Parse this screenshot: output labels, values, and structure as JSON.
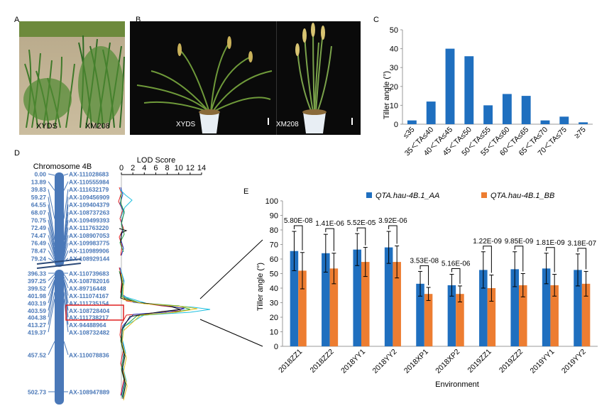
{
  "panels": {
    "a": "A",
    "b": "B",
    "c": "C",
    "d": "D",
    "e": "E"
  },
  "photo_a": {
    "left_label": "XYDS",
    "right_label": "XM208"
  },
  "photo_b": {
    "left_label": "XYDS",
    "right_label": "XM208"
  },
  "chromosome": {
    "title": "Chromosome 4B",
    "lod_title": "LOD Score",
    "lod_ticks": [
      "0",
      "2",
      "4",
      "6",
      "8",
      "10",
      "12",
      "14"
    ],
    "upper_markers": [
      {
        "pos": "0.00",
        "name": "AX-111028683"
      },
      {
        "pos": "13.89",
        "name": "AX-110555984"
      },
      {
        "pos": "39.83",
        "name": "AX-111632179"
      },
      {
        "pos": "59.27",
        "name": "AX-109456909"
      },
      {
        "pos": "64.55",
        "name": "AX-109404379"
      },
      {
        "pos": "68.07",
        "name": "AX-108737263"
      },
      {
        "pos": "70.75",
        "name": "AX-109499393"
      },
      {
        "pos": "72.49",
        "name": "AX-111763220"
      },
      {
        "pos": "74.47",
        "name": "AX-108907053"
      },
      {
        "pos": "76.49",
        "name": "AX-109983775"
      },
      {
        "pos": "78.47",
        "name": "AX-110989906"
      },
      {
        "pos": "79.24",
        "name": "AX-108929144"
      }
    ],
    "lower_markers": [
      {
        "pos": "396.33",
        "name": "AX-110739683"
      },
      {
        "pos": "397.25",
        "name": "AX-108782016"
      },
      {
        "pos": "399.52",
        "name": "AX-89716448"
      },
      {
        "pos": "401.98",
        "name": "AX-111074167"
      },
      {
        "pos": "403.19",
        "name": "AX-111735154"
      },
      {
        "pos": "403.59",
        "name": "AX-108728404"
      },
      {
        "pos": "404.38",
        "name": "AX-111738217"
      },
      {
        "pos": "413.27",
        "name": "AX-94488964"
      },
      {
        "pos": "419.37",
        "name": "AX-108732482"
      },
      {
        "pos": "457.52",
        "name": "AX-110078836"
      },
      {
        "pos": "502.73",
        "name": "AX-108947889"
      }
    ],
    "highlight_color": "#e02020",
    "bar_color": "#4a78b8",
    "text_color": "#4a78b8"
  },
  "chart_data": [
    {
      "type": "bar",
      "ylabel": "Tiller angle (°)",
      "categories": [
        "≤35",
        "35＜TA≤40",
        "40＜TA≤45",
        "45＜TA≤50",
        "50＜TA≤55",
        "55＜TA≤60",
        "60＜TA≤65",
        "65＜TA≤70",
        "70＜TA≤75",
        "≥75"
      ],
      "values": [
        2,
        12,
        40,
        36,
        10,
        16,
        15,
        2,
        4,
        1
      ],
      "ylim": [
        0,
        50
      ],
      "yticks": [
        "0",
        "10",
        "20",
        "30",
        "40",
        "50"
      ],
      "color": "#1f6fbf"
    },
    {
      "type": "bar",
      "ylabel": "Tiller angle (°)",
      "xlabel": "Environment",
      "categories": [
        "2018ZZ1",
        "2018ZZ2",
        "2018YY1",
        "2018YY2",
        "2018XP1",
        "2018XP2",
        "2019ZZ1",
        "2019ZZ2",
        "2019YY1",
        "2019YY2"
      ],
      "series": [
        {
          "name": "QTA.hau-4B.1_AA",
          "values": [
            65.5,
            64,
            66.5,
            68,
            43,
            42,
            52.5,
            53,
            53.5,
            52.5
          ],
          "errors": [
            13.5,
            13,
            11,
            11,
            8.5,
            7.5,
            12.5,
            12,
            10.5,
            11
          ],
          "color": "#1f6fbf"
        },
        {
          "name": "QTA.hau-4B.1_BB",
          "values": [
            52,
            53.5,
            58,
            58,
            36,
            36,
            40,
            42,
            42,
            43
          ],
          "errors": [
            12.5,
            10.5,
            10,
            11,
            4.5,
            5.5,
            9,
            8,
            7.5,
            8.5
          ],
          "color": "#ed7d31"
        }
      ],
      "pvalues": [
        "5.80E-08",
        "1.41E-06",
        "5.52E-05",
        "3.92E-06",
        "3.53E-08",
        "5.16E-06",
        "1.22E-09",
        "9.85E-09",
        "1.81E-09",
        "3.18E-07"
      ],
      "ylim": [
        0,
        100
      ],
      "yticks": [
        "0",
        "10",
        "20",
        "30",
        "40",
        "50",
        "60",
        "70",
        "80",
        "90",
        "100"
      ],
      "legend_placement": "top-right",
      "grid": false
    }
  ]
}
